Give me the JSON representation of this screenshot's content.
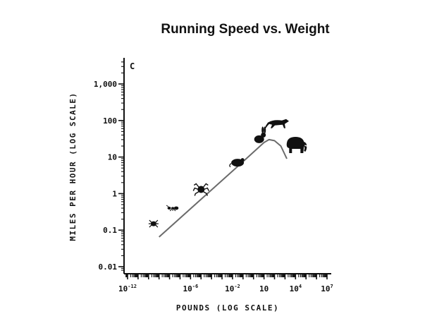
{
  "chart_data": {
    "type": "line",
    "title": "Running Speed vs. Weight",
    "panel_label": "C",
    "xlabel": "POUNDS (LOG SCALE)",
    "ylabel": "MILES PER HOUR (LOG SCALE)",
    "xscale": "log",
    "yscale": "log",
    "xlim": [
      1e-12,
      10000000.0
    ],
    "ylim": [
      0.005,
      5000
    ],
    "x_ticks": [
      {
        "value": 1e-12,
        "base": "10",
        "exp": "-12"
      },
      {
        "value": 1e-06,
        "base": "10",
        "exp": "-6"
      },
      {
        "value": 0.01,
        "base": "10",
        "exp": "-2"
      },
      {
        "value": 10,
        "base": "10",
        "exp": ""
      },
      {
        "value": 10000,
        "base": "10",
        "exp": "4"
      },
      {
        "value": 10000000.0,
        "base": "10",
        "exp": "7"
      }
    ],
    "y_ticks": [
      {
        "value": 0.01,
        "label": "0.01"
      },
      {
        "value": 0.1,
        "label": "0.1"
      },
      {
        "value": 1,
        "label": "1"
      },
      {
        "value": 10,
        "label": "10"
      },
      {
        "value": 100,
        "label": "100"
      },
      {
        "value": 1000,
        "label": "1,000"
      }
    ],
    "grid": false,
    "series": [
      {
        "x": [
          1e-09,
          0.1,
          10,
          30,
          100,
          400,
          1500
        ],
        "y": [
          0.065,
          7.5,
          25,
          30,
          28,
          20,
          9
        ]
      }
    ],
    "markers": [
      {
        "icon": "mite-icon",
        "x": 3e-10,
        "y": 0.15
      },
      {
        "icon": "ant-icon",
        "x": 2e-08,
        "y": 0.4
      },
      {
        "icon": "spider-icon",
        "x": 1e-05,
        "y": 1.3
      },
      {
        "icon": "mouse-icon",
        "x": 0.03,
        "y": 7
      },
      {
        "icon": "rabbit-icon",
        "x": 4,
        "y": 35
      },
      {
        "icon": "cheetah-icon",
        "x": 200,
        "y": 80
      },
      {
        "icon": "elephant-icon",
        "x": 10000,
        "y": 20
      }
    ],
    "colors": {
      "line": "#6b6b6b",
      "icons": "#111111",
      "axis": "#111111"
    }
  }
}
